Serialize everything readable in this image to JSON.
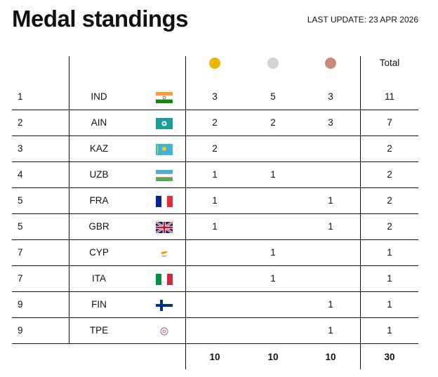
{
  "title": "Medal standings",
  "last_update": "LAST UPDATE: 23 APR 2026",
  "header": {
    "total": "Total",
    "medals": [
      {
        "name": "gold",
        "color": "#e6b800"
      },
      {
        "name": "silver",
        "color": "#d4d4d6"
      },
      {
        "name": "bronze",
        "color": "#c98a72"
      }
    ]
  },
  "rows": [
    {
      "rank": "1",
      "code": "IND",
      "gold": "3",
      "silver": "5",
      "bronze": "3",
      "total": "11"
    },
    {
      "rank": "2",
      "code": "AIN",
      "gold": "2",
      "silver": "2",
      "bronze": "3",
      "total": "7"
    },
    {
      "rank": "3",
      "code": "KAZ",
      "gold": "2",
      "silver": "",
      "bronze": "",
      "total": "2"
    },
    {
      "rank": "4",
      "code": "UZB",
      "gold": "1",
      "silver": "1",
      "bronze": "",
      "total": "2"
    },
    {
      "rank": "5",
      "code": "FRA",
      "gold": "1",
      "silver": "",
      "bronze": "1",
      "total": "2"
    },
    {
      "rank": "5",
      "code": "GBR",
      "gold": "1",
      "silver": "",
      "bronze": "1",
      "total": "2"
    },
    {
      "rank": "7",
      "code": "CYP",
      "gold": "",
      "silver": "1",
      "bronze": "",
      "total": "1"
    },
    {
      "rank": "7",
      "code": "ITA",
      "gold": "",
      "silver": "1",
      "bronze": "",
      "total": "1"
    },
    {
      "rank": "9",
      "code": "FIN",
      "gold": "",
      "silver": "",
      "bronze": "1",
      "total": "1"
    },
    {
      "rank": "9",
      "code": "TPE",
      "gold": "",
      "silver": "",
      "bronze": "1",
      "total": "1"
    }
  ],
  "totals": {
    "gold": "10",
    "silver": "10",
    "bronze": "10",
    "total": "30"
  }
}
